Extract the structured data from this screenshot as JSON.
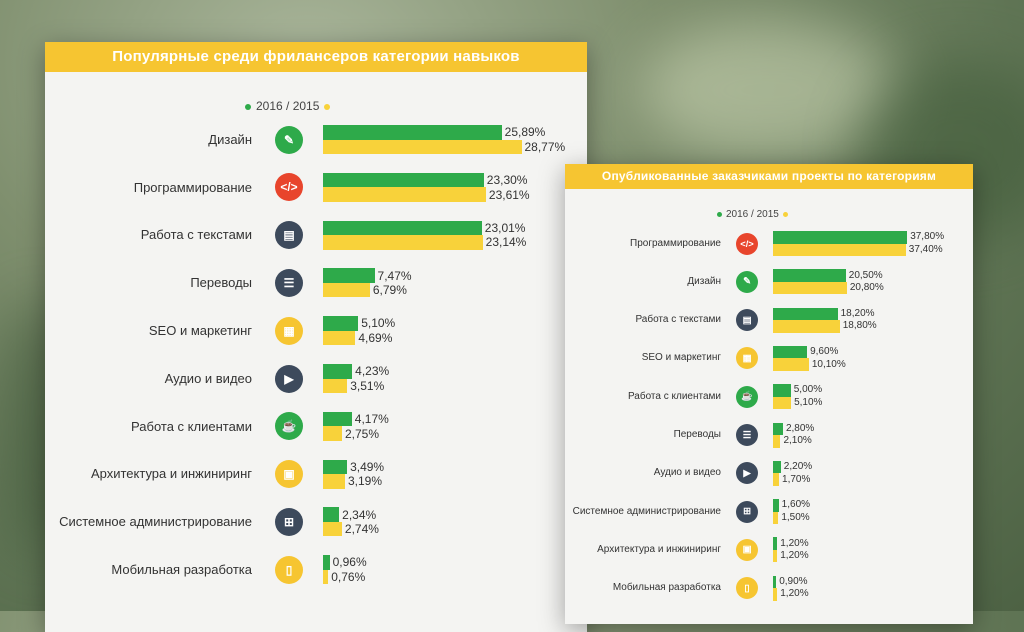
{
  "colors": {
    "series_2016": "#2eaa4a",
    "series_2015": "#f8d23a",
    "header": "#f6c531"
  },
  "chart_data": [
    {
      "type": "bar",
      "orientation": "horizontal",
      "title": "Популярные среди фрилансеров категории навыков",
      "legend": "2016 / 2015",
      "legend_placement": "top",
      "categories": [
        "Дизайн",
        "Программирование",
        "Работа с текстами",
        "Переводы",
        "SEO и маркетинг",
        "Аудио и видео",
        "Работа с клиентами",
        "Архитектура и инжиниринг",
        "Системное администрирование",
        "Мобильная разработка"
      ],
      "icons": [
        "pencil-ruler-icon",
        "code-icon",
        "document-icon",
        "stack-icon",
        "presentation-icon",
        "film-icon",
        "cup-icon",
        "box-icon",
        "network-icon",
        "phone-icon"
      ],
      "icon_colors": [
        "#2eaa4a",
        "#e8452c",
        "#3d4a5c",
        "#3d4a5c",
        "#f6c531",
        "#3d4a5c",
        "#2eaa4a",
        "#f6c531",
        "#3d4a5c",
        "#f6c531"
      ],
      "series": [
        {
          "values": [
            25.89,
            23.3,
            23.01,
            7.47,
            5.1,
            4.23,
            4.17,
            3.49,
            2.34,
            0.96
          ],
          "labels": [
            "25,89%",
            "23,30%",
            "23,01%",
            "7,47%",
            "5,10%",
            "4,23%",
            "4,17%",
            "3,49%",
            "2,34%",
            "0,96%"
          ]
        },
        {
          "values": [
            28.77,
            23.61,
            23.14,
            6.79,
            4.69,
            3.51,
            2.75,
            3.19,
            2.74,
            0.76
          ],
          "labels": [
            "28,77%",
            "23,61%",
            "23,14%",
            "6,79%",
            "4,69%",
            "3,51%",
            "2,75%",
            "3,19%",
            "2,74%",
            "0,76%"
          ]
        }
      ]
    },
    {
      "type": "bar",
      "orientation": "horizontal",
      "title": "Опубликованные заказчиками проекты по категориям",
      "legend": "2016 / 2015",
      "legend_placement": "top",
      "categories": [
        "Программирование",
        "Дизайн",
        "Работа с текстами",
        "SEO и маркетинг",
        "Работа с клиентами",
        "Переводы",
        "Аудио и видео",
        "Системное администрирование",
        "Архитектура и инжиниринг",
        "Мобильная разработка"
      ],
      "icons": [
        "code-icon",
        "pencil-ruler-icon",
        "document-icon",
        "presentation-icon",
        "cup-icon",
        "stack-icon",
        "film-icon",
        "network-icon",
        "box-icon",
        "phone-icon"
      ],
      "icon_colors": [
        "#e8452c",
        "#2eaa4a",
        "#3d4a5c",
        "#f6c531",
        "#2eaa4a",
        "#3d4a5c",
        "#3d4a5c",
        "#3d4a5c",
        "#f6c531",
        "#f6c531"
      ],
      "series": [
        {
          "values": [
            37.8,
            20.5,
            18.2,
            9.6,
            5.0,
            2.8,
            2.2,
            1.6,
            1.2,
            0.9
          ],
          "labels": [
            "37,80%",
            "20,50%",
            "18,20%",
            "9,60%",
            "5,00%",
            "2,80%",
            "2,20%",
            "1,60%",
            "1,20%",
            "0,90%"
          ]
        },
        {
          "values": [
            37.4,
            20.8,
            18.8,
            10.1,
            5.1,
            2.1,
            1.7,
            1.5,
            1.2,
            1.2
          ],
          "labels": [
            "37,40%",
            "20,80%",
            "18,80%",
            "10,10%",
            "5,10%",
            "2,10%",
            "1,70%",
            "1,50%",
            "1,20%",
            "1,20%"
          ]
        }
      ]
    }
  ]
}
